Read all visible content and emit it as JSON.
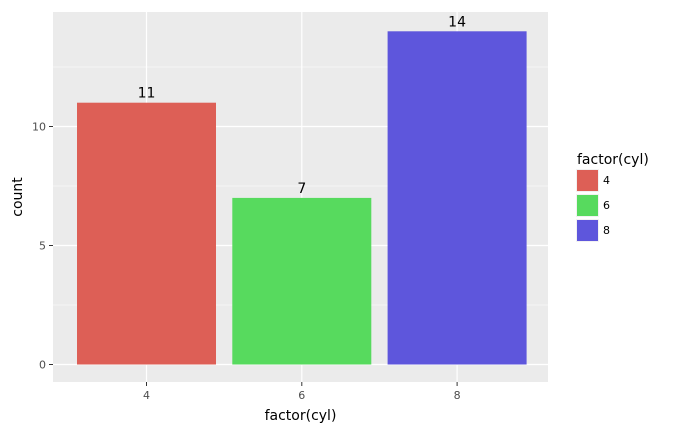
{
  "chart_data": {
    "type": "bar",
    "categories": [
      "4",
      "6",
      "8"
    ],
    "values": [
      11,
      7,
      14
    ],
    "data_labels": [
      "11",
      "7",
      "14"
    ],
    "xlabel": "factor(cyl)",
    "ylabel": "count",
    "ylim": [
      0,
      14.7
    ],
    "yticks": [
      0,
      5,
      10
    ],
    "ytick_labels": [
      "0",
      "5",
      "10"
    ],
    "grid": true,
    "legend": {
      "title": "factor(cyl)",
      "position": "right",
      "entries": [
        "4",
        "6",
        "8"
      ]
    },
    "colors": [
      "#dd5f56",
      "#57da5e",
      "#5e56dc"
    ],
    "panel_background": "#ebebeb",
    "gridline_color": "#ffffff"
  }
}
